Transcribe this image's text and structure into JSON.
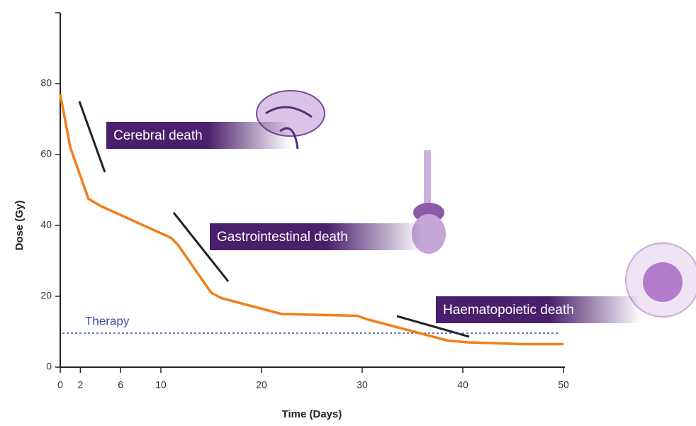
{
  "chart_data": {
    "type": "line",
    "x_label": "Time (Days)",
    "y_label": "Dose (Gy)",
    "x": [
      0,
      1,
      2.8,
      4,
      11,
      11.7,
      15,
      16,
      22,
      29.5,
      30.5,
      38.5,
      40.5,
      46,
      50
    ],
    "values": [
      77,
      62,
      47.5,
      45.5,
      36.5,
      34.5,
      21,
      19.5,
      15,
      14.5,
      13.5,
      7.5,
      7,
      6.5,
      6.5
    ],
    "color": "#f07f1a",
    "xlim": [
      0,
      50
    ],
    "xticks": [
      0,
      2,
      6,
      10,
      20,
      30,
      40,
      50
    ],
    "ylim": [
      0,
      100
    ],
    "yticks": [
      0,
      20,
      40,
      60,
      80
    ],
    "therapy": {
      "label": "Therapy",
      "value": 9.6,
      "color": "#3b4fa8"
    },
    "annotations": [
      "Cerebral death",
      "Gastrointestinal death",
      "Haematopoietic death"
    ],
    "annotation_color": "#4a1f6b"
  }
}
